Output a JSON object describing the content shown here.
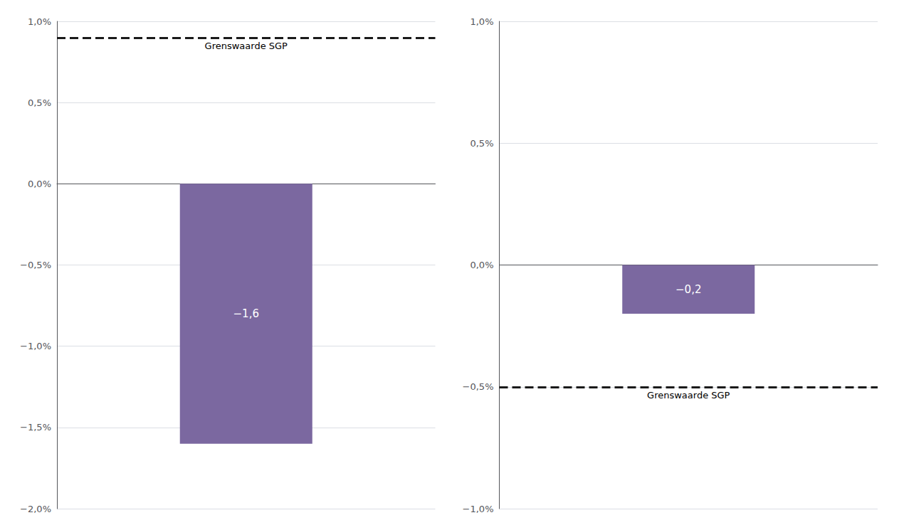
{
  "chart_data": [
    {
      "type": "bar",
      "categories": [
        null
      ],
      "values": [
        -1.6
      ],
      "value_labels": [
        "−1,6"
      ],
      "data_labels": true,
      "color": "#7B68A0",
      "ylim": [
        -2.0,
        1.0
      ],
      "yticks": [
        {
          "value": -2.0,
          "label": "−2,0%"
        },
        {
          "value": -1.5,
          "label": "−1,5%"
        },
        {
          "value": -1.0,
          "label": "−1,0%"
        },
        {
          "value": -0.5,
          "label": "−0,5%"
        },
        {
          "value": 0.0,
          "label": "0,0%"
        },
        {
          "value": 0.5,
          "label": "0,5%"
        },
        {
          "value": 1.0,
          "label": "1,0%"
        }
      ],
      "grid": true,
      "tick_labels": "y",
      "annotations": [
        {
          "text": "Grenswaarde SGP",
          "y": 0.9,
          "line_style": "dashed",
          "color": "#1a1a1a"
        }
      ]
    },
    {
      "type": "bar",
      "categories": [
        null
      ],
      "values": [
        -0.2
      ],
      "value_labels": [
        "−0,2"
      ],
      "data_labels": true,
      "color": "#7B68A0",
      "ylim": [
        -1.0,
        1.0
      ],
      "yticks": [
        {
          "value": -1.0,
          "label": "−1,0%"
        },
        {
          "value": -0.5,
          "label": "−0,5%"
        },
        {
          "value": 0.0,
          "label": "0,0%"
        },
        {
          "value": 0.5,
          "label": "0,5%"
        },
        {
          "value": 1.0,
          "label": "1,0%"
        }
      ],
      "grid": true,
      "tick_labels": "y",
      "annotations": [
        {
          "text": "Grenswaarde SGP",
          "y": -0.5,
          "line_style": "dashed",
          "color": "#1a1a1a"
        }
      ]
    }
  ]
}
